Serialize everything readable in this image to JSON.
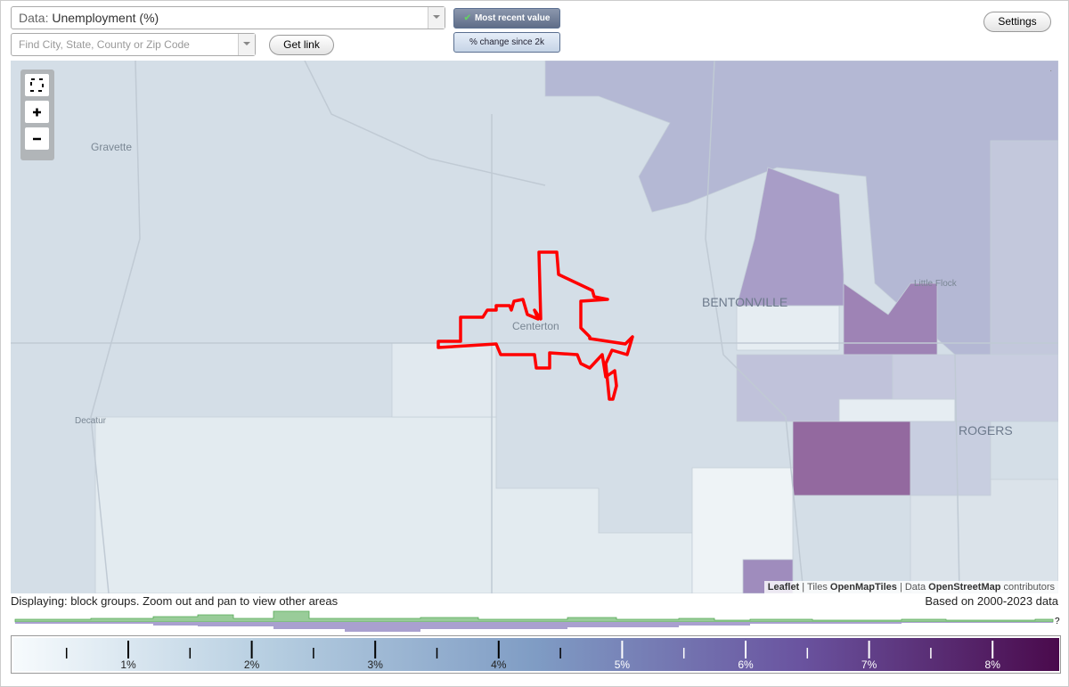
{
  "controls": {
    "data_label": "Data:",
    "data_value": "Unemployment (%)",
    "search_placeholder": "Find City, State, County or Zip Code",
    "get_link": "Get link",
    "most_recent": "Most recent value",
    "pct_change": "% change since 2k",
    "settings": "Settings"
  },
  "map": {
    "places": [
      "Gravette",
      "Decatur",
      "Centerton",
      "BENTONVILLE",
      "Little Flock",
      "ROGERS"
    ],
    "attribution": [
      "Leaflet",
      "| Tiles",
      "OpenMapTiles",
      "| Data",
      "OpenStreetMap",
      "contributors"
    ]
  },
  "status": {
    "displaying": "Displaying: block groups. Zoom out and pan to view other areas",
    "based_on": "Based on 2000-2023 data"
  },
  "legend": {
    "ticks": [
      "1%",
      "2%",
      "3%",
      "4%",
      "5%",
      "6%",
      "7%",
      "8%"
    ],
    "help": "?"
  }
}
